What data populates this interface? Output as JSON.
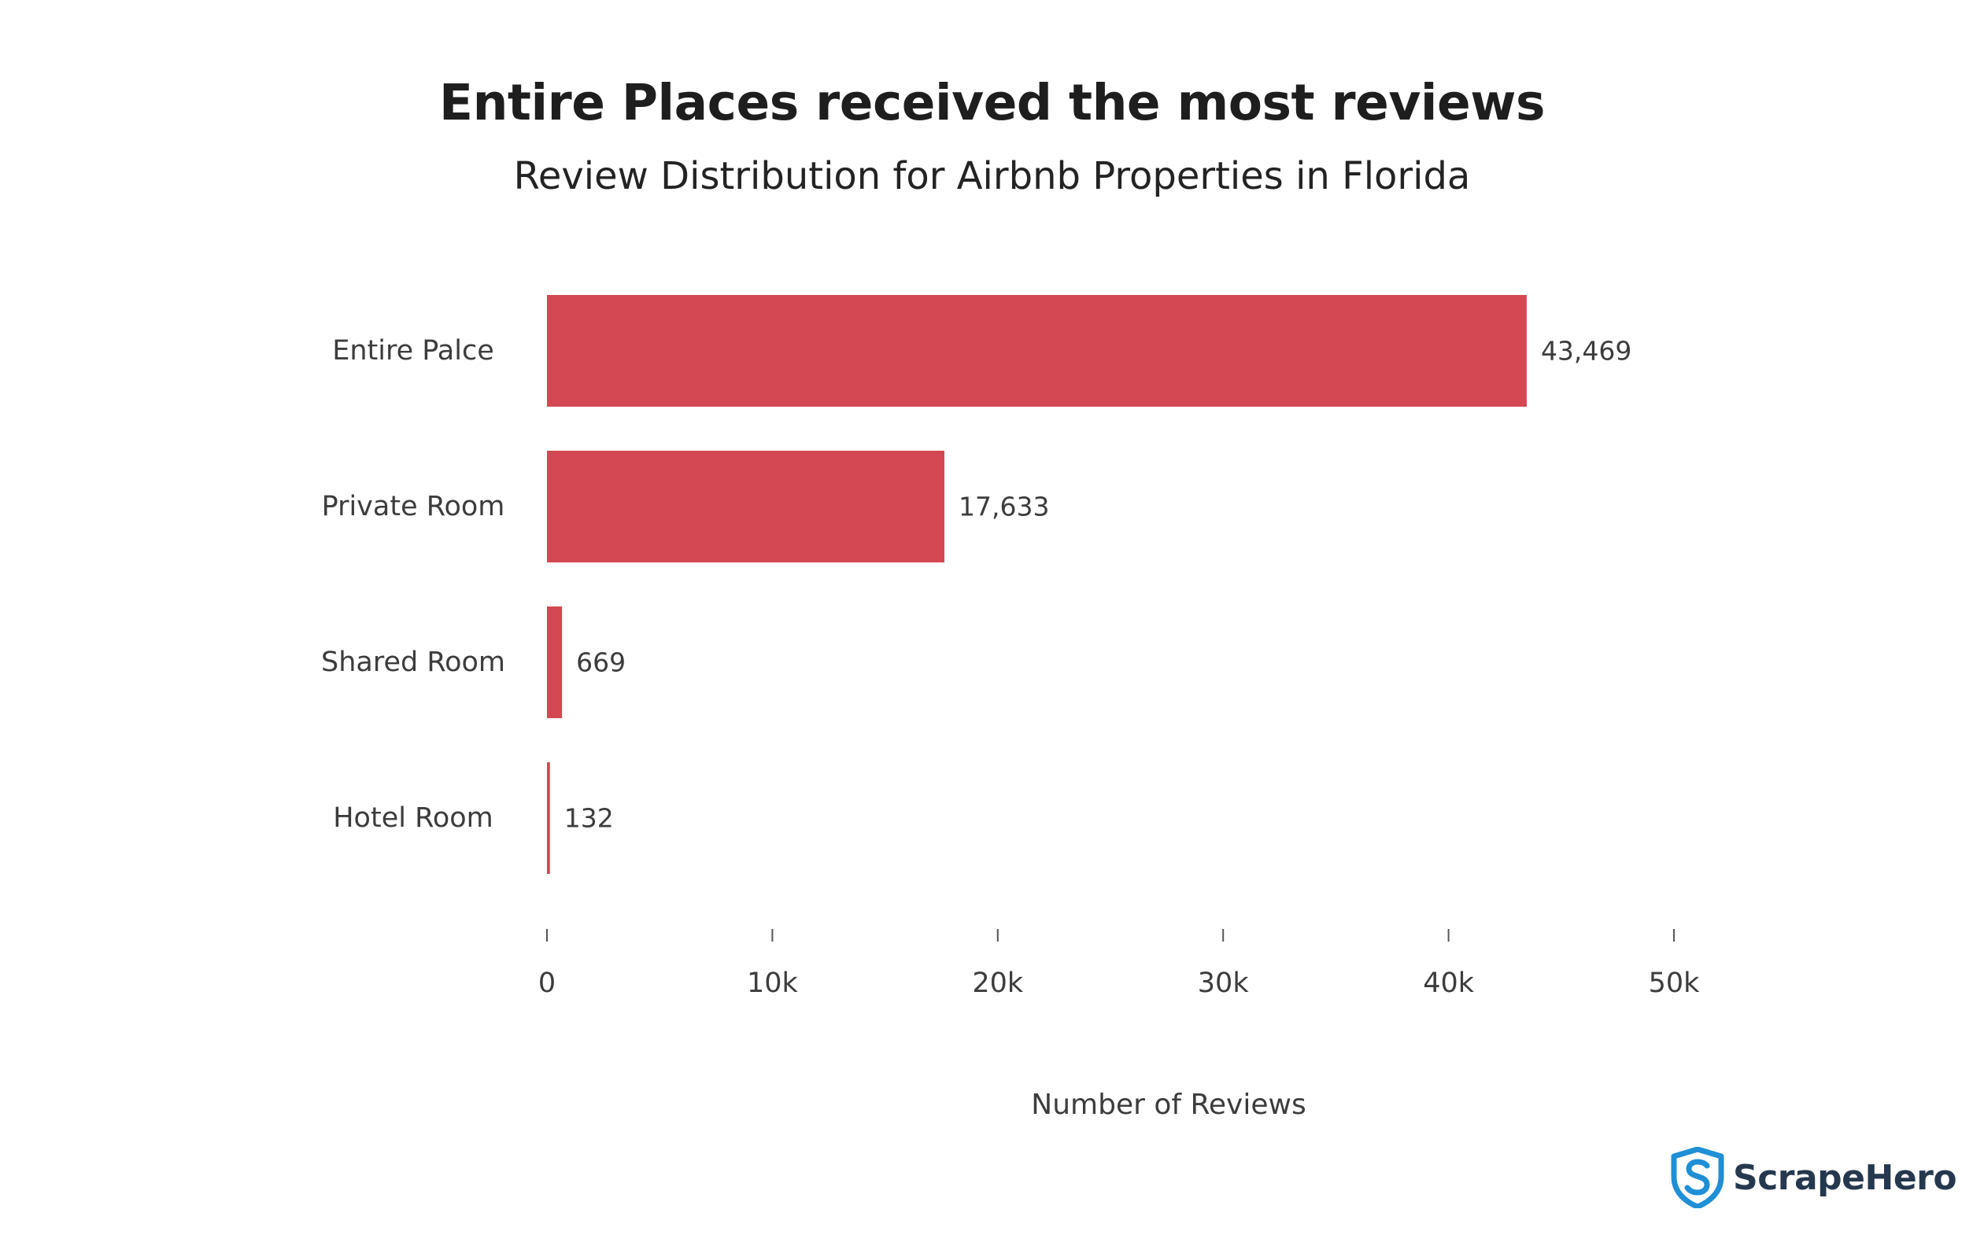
{
  "title": "Entire Places received the most reviews",
  "subtitle": "Review Distribution for Airbnb Properties in Florida",
  "brand": {
    "name": "ScrapeHero",
    "logo_icon": "shield-s-icon",
    "colors": {
      "icon": "#1f8fd6",
      "text": "#25384e"
    }
  },
  "chart_data": {
    "type": "bar",
    "orientation": "horizontal",
    "categories": [
      "Entire Palce",
      "Private Room",
      "Shared Room",
      "Hotel Room"
    ],
    "values": [
      43469,
      17633,
      669,
      132
    ],
    "value_labels": [
      "43,469",
      "17,633",
      "669",
      "132"
    ],
    "xlabel": "Number of Reviews",
    "ylabel": "",
    "xlim": [
      0,
      50000
    ],
    "xticks": [
      0,
      10000,
      20000,
      30000,
      40000,
      50000
    ],
    "xtick_labels": [
      "0",
      "10k",
      "20k",
      "30k",
      "40k",
      "50k"
    ],
    "grid": false,
    "bar_color": "#d34852"
  }
}
